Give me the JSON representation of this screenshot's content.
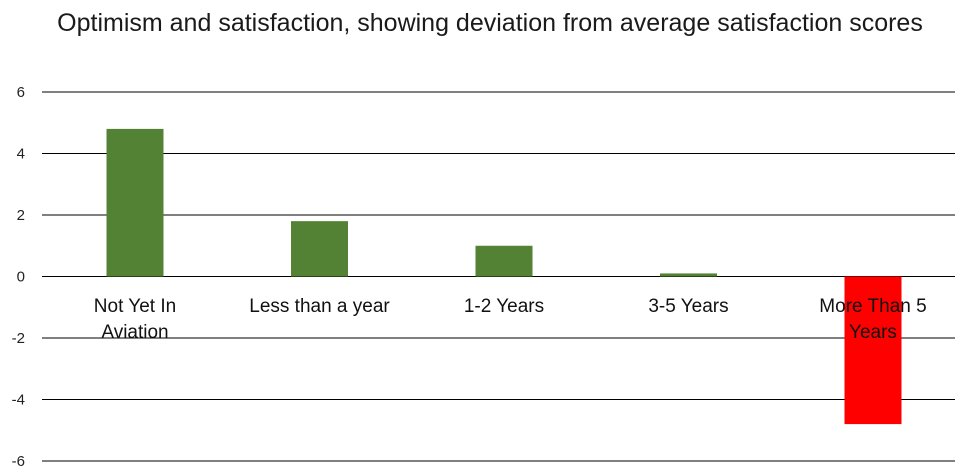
{
  "chart_data": {
    "type": "bar",
    "title": "Optimism and satisfaction, showing deviation from average satisfaction scores",
    "categories": [
      "Not Yet In Aviation",
      "Less than a year",
      "1-2 Years",
      "3-5 Years",
      "More Than 5 Years"
    ],
    "category_lines": [
      [
        "Not Yet In",
        "Aviation"
      ],
      [
        "Less than a year"
      ],
      [
        "1-2 Years"
      ],
      [
        "3-5 Years"
      ],
      [
        "More Than 5",
        "Years"
      ]
    ],
    "values": [
      4.8,
      1.8,
      1.0,
      0.1,
      -4.8
    ],
    "bar_colors": [
      "#548235",
      "#548235",
      "#548235",
      "#548235",
      "#ff0000"
    ],
    "ylim": [
      -6,
      6
    ],
    "yticks": [
      6,
      4,
      2,
      0,
      -2,
      -4,
      -6
    ],
    "grid": true,
    "legend": "none",
    "xlabel": "",
    "ylabel": ""
  }
}
